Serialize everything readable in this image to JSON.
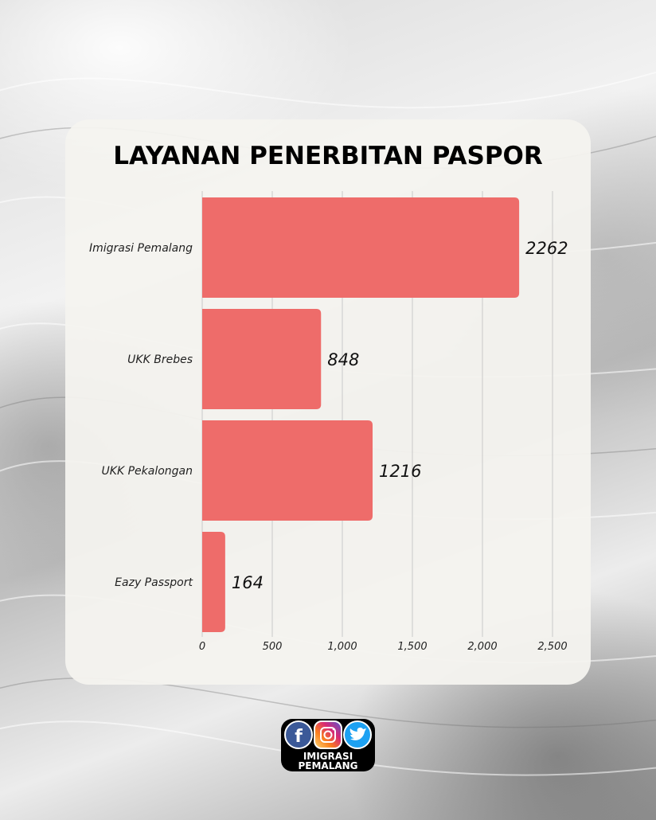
{
  "chart_data": {
    "type": "bar",
    "orientation": "horizontal",
    "title": "LAYANAN PENERBITAN PASPOR",
    "categories": [
      "Imigrasi Pemalang",
      "UKK Brebes",
      "UKK Pekalongan",
      "Eazy Passport"
    ],
    "values": [
      2262,
      848,
      1216,
      164
    ],
    "value_labels": [
      "2262",
      "848",
      "1216",
      "164"
    ],
    "xlim": [
      0,
      2500
    ],
    "x_ticks": [
      0,
      500,
      1000,
      1500,
      2000,
      2500
    ],
    "x_tick_labels": [
      "0",
      "500",
      "1,000",
      "1,500",
      "2,000",
      "2,500"
    ],
    "xlabel": "",
    "ylabel": "",
    "grid": "vertical",
    "bar_color": "#ee6c6a"
  },
  "logo": {
    "line1": "IMIGRASI",
    "line2": "PEMALANG",
    "icons": [
      "facebook-icon",
      "instagram-icon",
      "twitter-icon"
    ],
    "colors": {
      "facebook": "#3b5998",
      "twitter": "#1da1f2"
    }
  }
}
